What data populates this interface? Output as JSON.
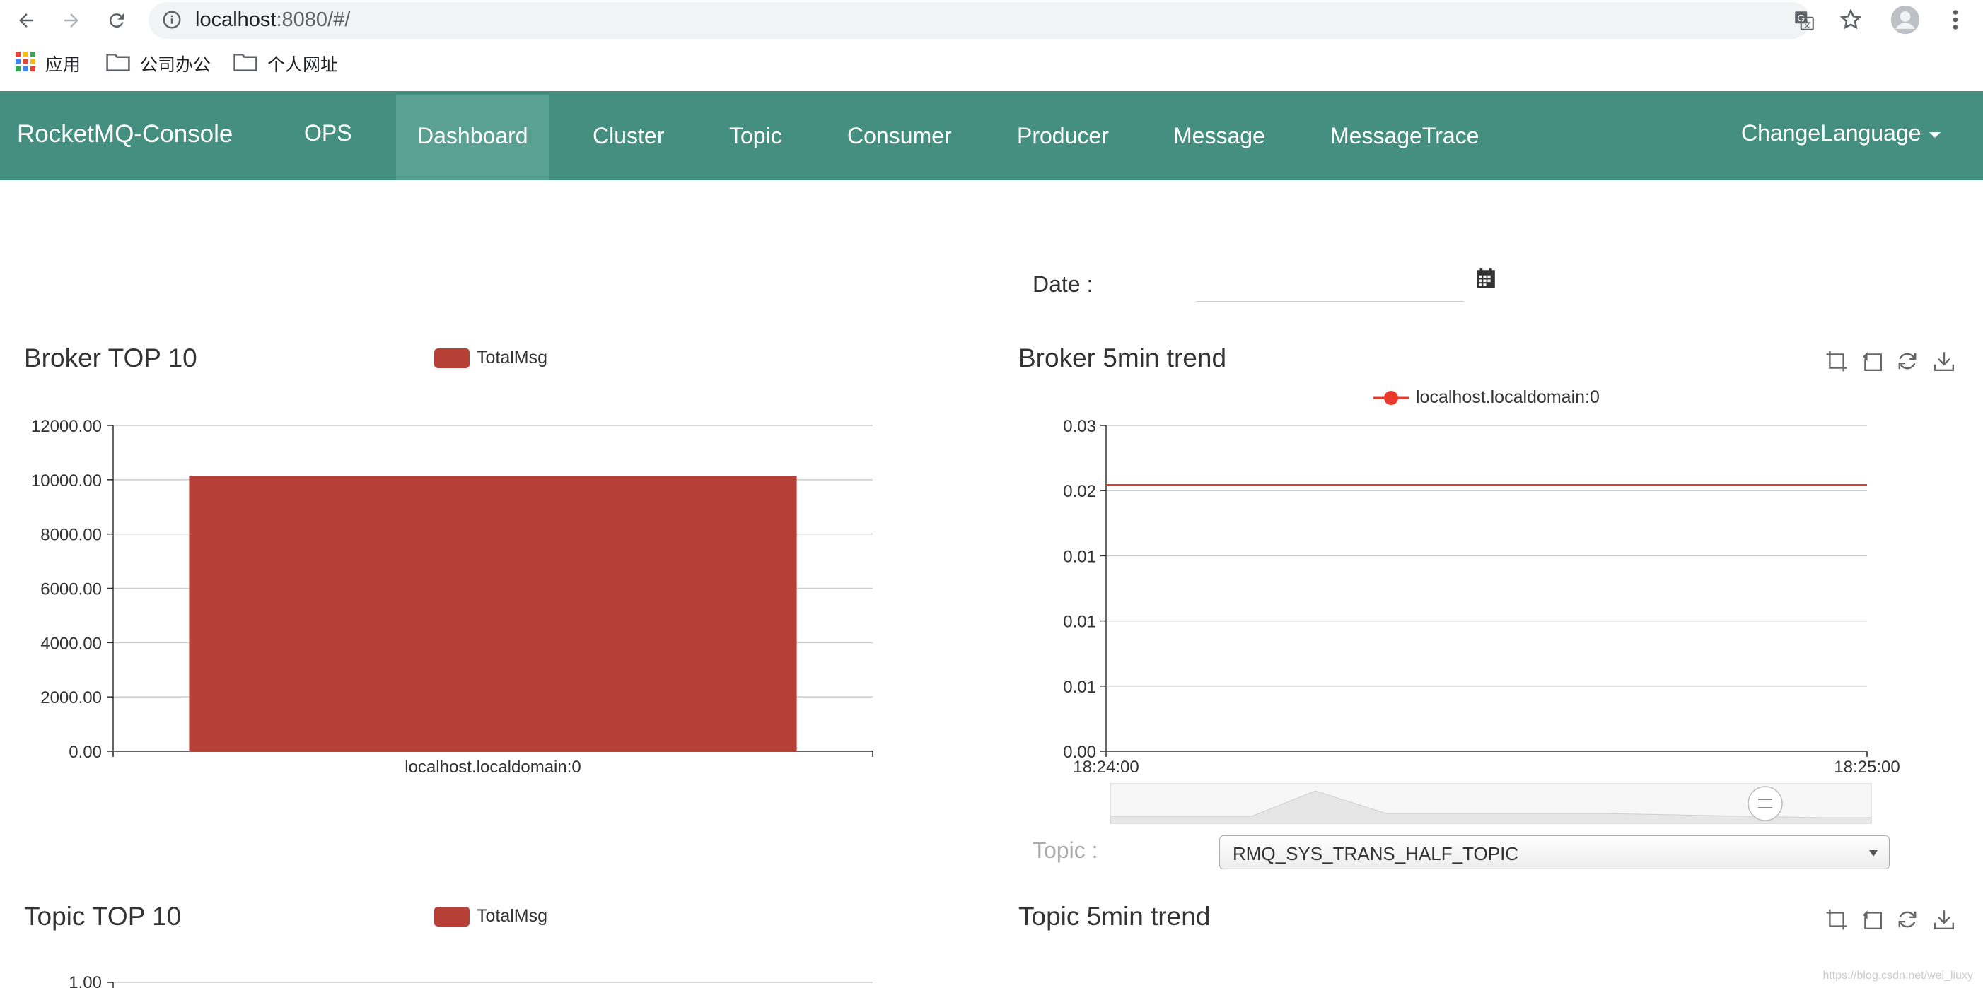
{
  "browser": {
    "url_host": "localhost",
    "url_rest": ":8080/#/",
    "bookmarks": [
      {
        "label": "应用",
        "icon": "apps-grid-icon"
      },
      {
        "label": "公司办公",
        "icon": "folder-icon"
      },
      {
        "label": "个人网址",
        "icon": "folder-icon"
      }
    ]
  },
  "navbar": {
    "brand": "RocketMQ-Console",
    "items": [
      "OPS",
      "Dashboard",
      "Cluster",
      "Topic",
      "Consumer",
      "Producer",
      "Message",
      "MessageTrace"
    ],
    "active": "Dashboard",
    "language": "ChangeLanguage"
  },
  "filters": {
    "date_label": "Date :",
    "date_value": "",
    "topic_label": "Topic :",
    "topic_selected": "RMQ_SYS_TRANS_HALF_TOPIC"
  },
  "sections": {
    "broker_top10": "Broker TOP 10",
    "broker_trend": "Broker 5min trend",
    "topic_top10": "Topic TOP 10",
    "topic_trend": "Topic 5min trend"
  },
  "colors": {
    "navbar": "#458f81",
    "bar": "#b63f36",
    "line": "#e8392b"
  },
  "chart_data": [
    {
      "type": "bar",
      "title": "Broker TOP 10",
      "legend": "TotalMsg",
      "categories": [
        "localhost.localdomain:0"
      ],
      "series": [
        {
          "name": "TotalMsg",
          "values": [
            10150
          ]
        }
      ],
      "ylim": [
        0,
        12000
      ],
      "yticks": [
        "0.00",
        "2000.00",
        "4000.00",
        "6000.00",
        "8000.00",
        "10000.00",
        "12000.00"
      ]
    },
    {
      "type": "line",
      "title": "Broker 5min trend",
      "legend": "localhost.localdomain:0",
      "x": [
        "18:24:00",
        "18:25:00"
      ],
      "series": [
        {
          "name": "localhost.localdomain:0",
          "values": [
            0.0245,
            0.0245
          ]
        }
      ],
      "ylim": [
        0,
        0.03
      ],
      "yticks": [
        "0.00",
        "0.01",
        "0.01",
        "0.01",
        "0.02",
        "0.03"
      ]
    },
    {
      "type": "bar",
      "title": "Topic TOP 10",
      "legend": "TotalMsg",
      "categories": [],
      "series": [
        {
          "name": "TotalMsg",
          "values": []
        }
      ],
      "ylim": [
        0,
        1
      ],
      "yticks": [
        "1.00"
      ]
    }
  ],
  "watermark": "https://blog.csdn.net/wei_liuxy"
}
